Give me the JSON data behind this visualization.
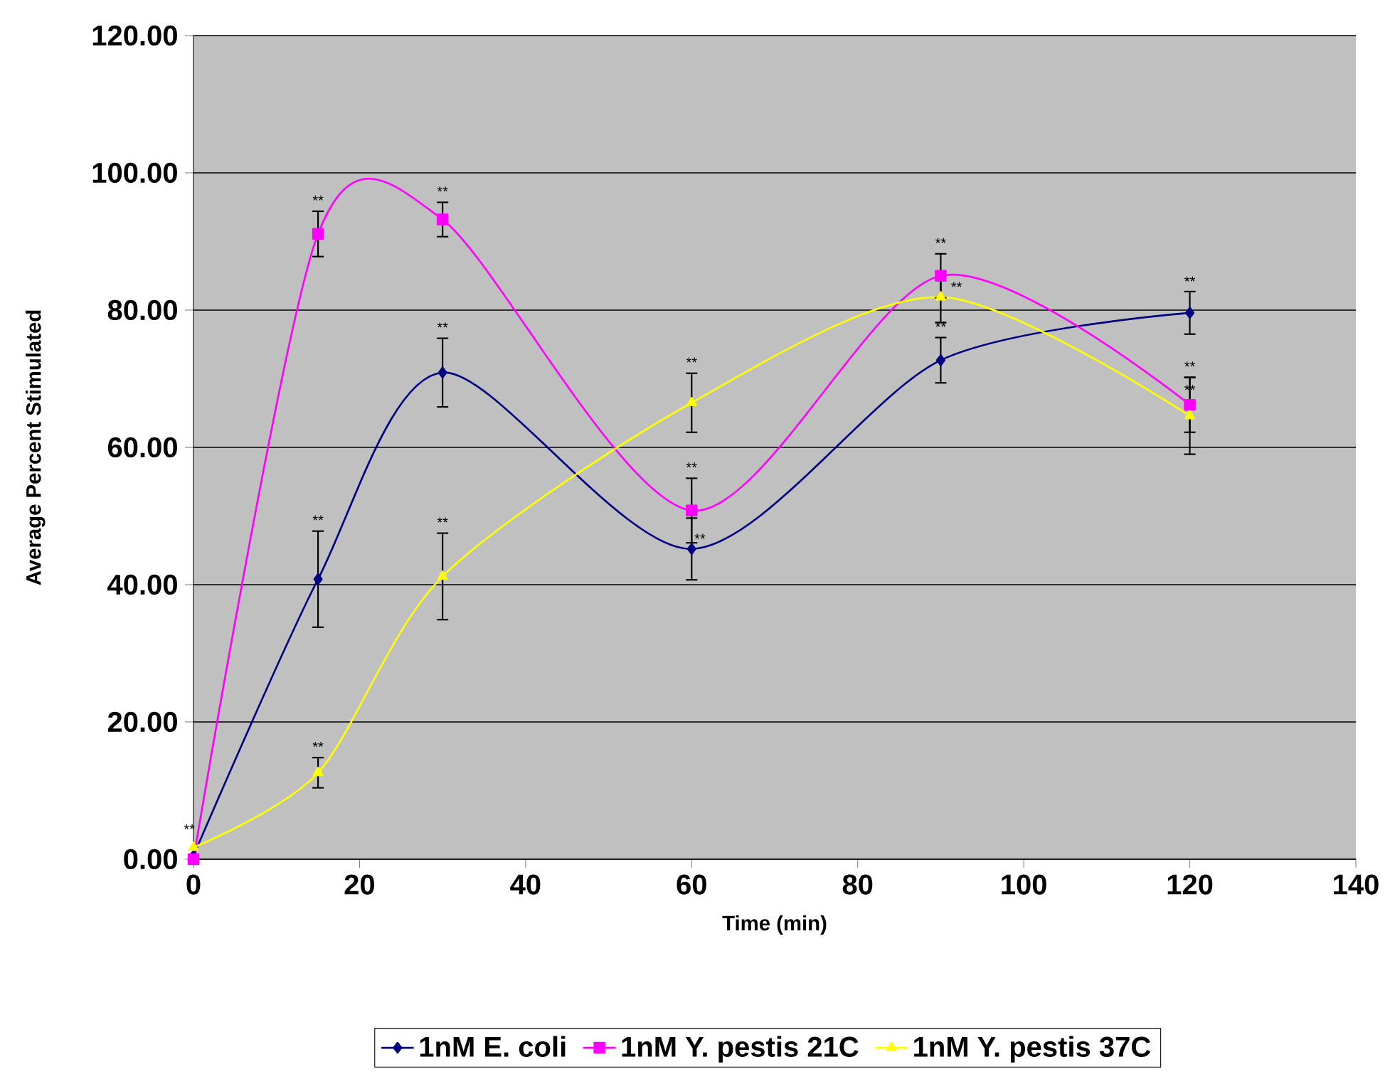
{
  "chart_data": {
    "type": "line",
    "xlabel": "Time (min)",
    "ylabel": "Average Percent Stimulated",
    "x": [
      0,
      15,
      30,
      60,
      90,
      120
    ],
    "series": [
      {
        "name": "1nM E. coli",
        "color": "#000080",
        "marker": "diamond",
        "values": [
          0.5,
          40.8,
          70.9,
          45.2,
          72.7,
          79.6
        ],
        "errors": [
          null,
          7.0,
          5.0,
          4.5,
          3.3,
          3.1
        ]
      },
      {
        "name": "1nM Y. pestis 21C",
        "color": "#ff00ff",
        "marker": "square",
        "values": [
          0,
          91.1,
          93.2,
          50.8,
          85.0,
          66.2
        ],
        "errors": [
          null,
          3.3,
          2.5,
          4.7,
          3.2,
          4.0
        ]
      },
      {
        "name": "1nM Y. pestis 37C",
        "color": "#ffff00",
        "marker": "triangle",
        "values": [
          1.7,
          12.6,
          41.2,
          66.5,
          81.9,
          64.6
        ],
        "errors": [
          null,
          2.2,
          6.3,
          4.3,
          3.7,
          5.6
        ]
      }
    ],
    "xlim": [
      0,
      140
    ],
    "xticks": [
      0,
      20,
      40,
      60,
      80,
      100,
      120,
      140
    ],
    "ylim": [
      0,
      120
    ],
    "yticks": [
      {
        "value": 0,
        "label": "0.00"
      },
      {
        "value": 20,
        "label": "20.00"
      },
      {
        "value": 40,
        "label": "40.00"
      },
      {
        "value": 60,
        "label": "60.00"
      },
      {
        "value": 80,
        "label": "80.00"
      },
      {
        "value": 100,
        "label": "100.00"
      },
      {
        "value": 120,
        "label": "120.00"
      }
    ],
    "grid": "y",
    "legend": "bottom",
    "line_style": "solid",
    "annotations": [
      {
        "text": "**",
        "x": -0.5,
        "y": 3.2
      },
      {
        "text": "**",
        "x": 15,
        "y": 48.2
      },
      {
        "text": "**",
        "x": 30,
        "y": 76.3
      },
      {
        "text": "**",
        "x": 61,
        "y": 45.5
      },
      {
        "text": "**",
        "x": 90,
        "y": 76.4
      },
      {
        "text": "**",
        "x": 120,
        "y": 83.0
      },
      {
        "text": "**",
        "x": 15,
        "y": 94.8
      },
      {
        "text": "**",
        "x": 30,
        "y": 96.1
      },
      {
        "text": "**",
        "x": 60,
        "y": 55.9
      },
      {
        "text": "**",
        "x": 90,
        "y": 88.6
      },
      {
        "text": "**",
        "x": 120,
        "y": 70.6
      },
      {
        "text": "**",
        "x": 15,
        "y": 15.2
      },
      {
        "text": "**",
        "x": 30,
        "y": 47.9
      },
      {
        "text": "**",
        "x": 60,
        "y": 71.2
      },
      {
        "text": "**",
        "x": 91.9,
        "y": 82.2
      },
      {
        "text": "**",
        "x": 120,
        "y": 67.2
      }
    ]
  }
}
